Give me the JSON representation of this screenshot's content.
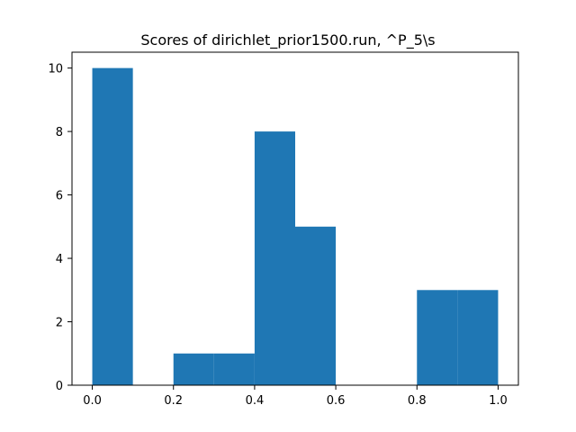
{
  "chart_data": {
    "type": "bar",
    "title": "Scores of dirichlet_prior1500.run, ^P_5\\s",
    "xlabel": "",
    "ylabel": "",
    "xlim": [
      -0.05,
      1.05
    ],
    "ylim": [
      0,
      10.5
    ],
    "bin_edges": [
      0.0,
      0.1,
      0.2,
      0.3,
      0.4,
      0.5,
      0.6,
      0.7,
      0.8,
      0.9,
      1.0
    ],
    "values": [
      10,
      0,
      1,
      1,
      8,
      5,
      0,
      0,
      3,
      3
    ],
    "x_ticks": [
      {
        "value": 0.0,
        "label": "0.0"
      },
      {
        "value": 0.2,
        "label": "0.2"
      },
      {
        "value": 0.4,
        "label": "0.4"
      },
      {
        "value": 0.6,
        "label": "0.6"
      },
      {
        "value": 0.8,
        "label": "0.8"
      },
      {
        "value": 1.0,
        "label": "1.0"
      }
    ],
    "y_ticks": [
      {
        "value": 0,
        "label": "0"
      },
      {
        "value": 2,
        "label": "2"
      },
      {
        "value": 4,
        "label": "4"
      },
      {
        "value": 6,
        "label": "6"
      },
      {
        "value": 8,
        "label": "8"
      },
      {
        "value": 10,
        "label": "10"
      }
    ],
    "bar_color": "#1f77b4",
    "grid": false,
    "legend": "none"
  }
}
